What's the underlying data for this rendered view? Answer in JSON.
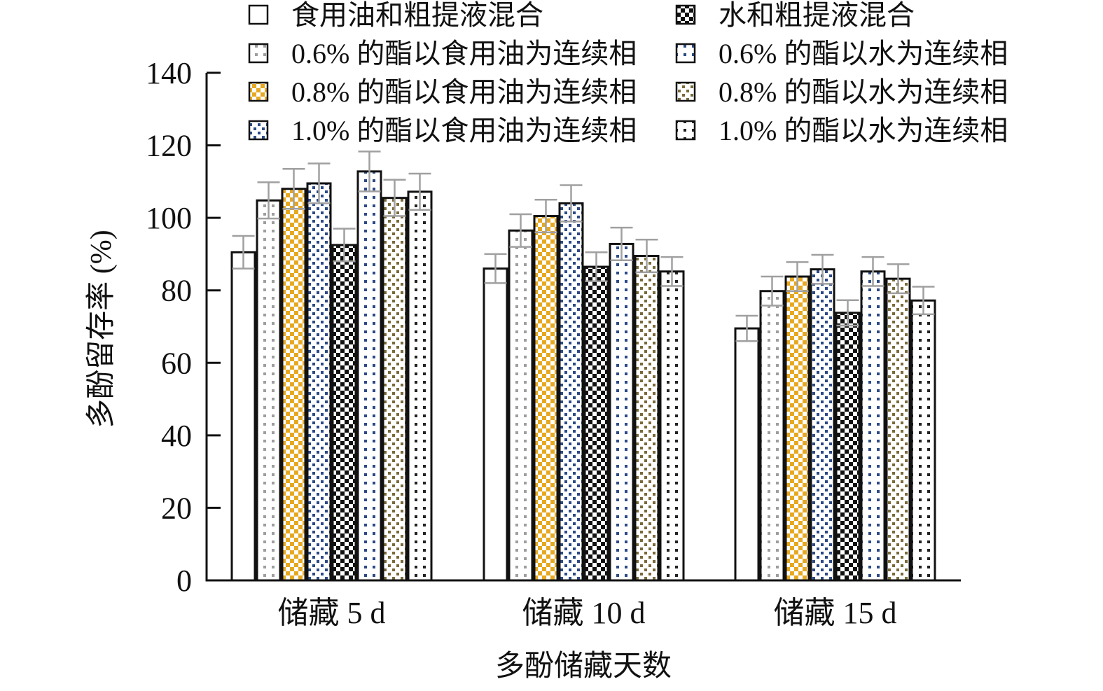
{
  "chart_data": {
    "type": "bar",
    "title": "",
    "xlabel": "多酚储藏天数",
    "ylabel": "多酚留存率 (%)",
    "ylim": [
      0,
      140
    ],
    "yticks": [
      0,
      20,
      40,
      60,
      80,
      100,
      120,
      140
    ],
    "categories": [
      "储藏 5 d",
      "储藏 10 d",
      "储藏 15 d"
    ],
    "legend_placement": "top",
    "grid": false,
    "series": [
      {
        "name": "食用油和粗提液混合",
        "values": [
          90.5,
          86.0,
          69.5
        ],
        "errors": [
          4.5,
          4.0,
          3.5
        ],
        "color": "#ffffff",
        "pattern": "none"
      },
      {
        "name": "0.6% 的酯以食用油为连续相",
        "values": [
          104.8,
          96.5,
          79.8
        ],
        "errors": [
          5.0,
          4.5,
          4.0
        ],
        "color": "#9e9e9e",
        "pattern": "sparse-dots"
      },
      {
        "name": "0.8% 的酯以食用油为连续相",
        "values": [
          108.0,
          100.5,
          83.8
        ],
        "errors": [
          5.5,
          4.5,
          4.0
        ],
        "color": "#e6a820",
        "pattern": "checker"
      },
      {
        "name": "1.0% 的酯以食用油为连续相",
        "values": [
          109.5,
          104.0,
          85.8
        ],
        "errors": [
          5.5,
          5.0,
          4.0
        ],
        "color": "#2b4a86",
        "pattern": "dots"
      },
      {
        "name": "水和粗提液混合",
        "values": [
          92.5,
          86.5,
          73.8
        ],
        "errors": [
          4.5,
          4.0,
          3.5
        ],
        "color": "#111111",
        "pattern": "checker"
      },
      {
        "name": "0.6% 的酯以水为连续相",
        "values": [
          112.8,
          92.8,
          85.2
        ],
        "errors": [
          5.5,
          4.5,
          4.0
        ],
        "color": "#2b4a86",
        "pattern": "sparse-dots"
      },
      {
        "name": "0.8% 的酯以水为连续相",
        "values": [
          105.5,
          89.5,
          83.2
        ],
        "errors": [
          5.0,
          4.5,
          4.0
        ],
        "color": "#7a6a3a",
        "pattern": "dots"
      },
      {
        "name": "1.0% 的酯以水为连续相",
        "values": [
          107.2,
          85.2,
          77.2
        ],
        "errors": [
          5.0,
          4.0,
          3.8
        ],
        "color": "#222222",
        "pattern": "sparse-dots"
      }
    ]
  }
}
